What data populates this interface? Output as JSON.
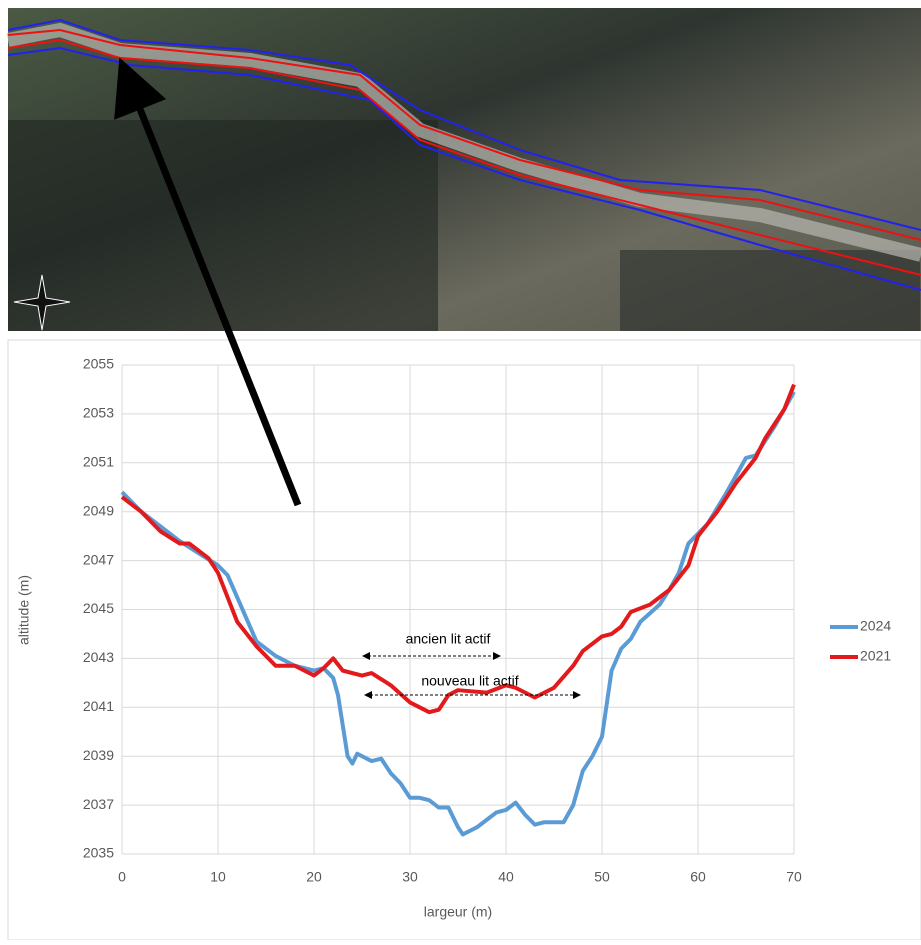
{
  "chart_data": {
    "type": "line",
    "xlabel": "largeur (m)",
    "ylabel": "altitude (m)",
    "xlim": [
      0,
      70
    ],
    "xticks": [
      0,
      10,
      20,
      30,
      40,
      50,
      60,
      70
    ],
    "ylim": [
      2035,
      2055
    ],
    "yticks": [
      2035,
      2037,
      2039,
      2041,
      2043,
      2045,
      2047,
      2049,
      2051,
      2053,
      2055
    ],
    "grid": true,
    "legend": "right",
    "annotations": [
      "ancien lit actif",
      "nouveau lit actif"
    ],
    "series": [
      {
        "name": "2024",
        "color": "#5b9bd5",
        "x": [
          0,
          2,
          4,
          6,
          8,
          10,
          11,
          12,
          13,
          14,
          16,
          18,
          20,
          21,
          22,
          22.5,
          23.5,
          24,
          24.5,
          26,
          27,
          28,
          29,
          30,
          31,
          32,
          33,
          34,
          35,
          35.5,
          37,
          38,
          39,
          40,
          41,
          42,
          43,
          44,
          45,
          46,
          47,
          48,
          49,
          50,
          51,
          52,
          53,
          54,
          56,
          57,
          58,
          59,
          61,
          63,
          65,
          66,
          68,
          70
        ],
        "values": [
          2049.8,
          2049.0,
          2048.4,
          2047.8,
          2047.3,
          2046.8,
          2046.4,
          2045.5,
          2044.6,
          2043.7,
          2043.1,
          2042.7,
          2042.5,
          2042.6,
          2042.2,
          2041.5,
          2039.0,
          2038.7,
          2039.1,
          2038.8,
          2038.9,
          2038.3,
          2037.9,
          2037.3,
          2037.3,
          2037.2,
          2036.9,
          2036.9,
          2036.1,
          2035.8,
          2036.1,
          2036.4,
          2036.7,
          2036.8,
          2037.1,
          2036.6,
          2036.2,
          2036.3,
          2036.3,
          2036.3,
          2037.0,
          2038.4,
          2039.0,
          2039.8,
          2042.5,
          2043.4,
          2043.8,
          2044.5,
          2045.2,
          2045.8,
          2046.5,
          2047.7,
          2048.5,
          2049.8,
          2051.2,
          2051.3,
          2052.5,
          2053.9
        ]
      },
      {
        "name": "2021",
        "color": "#e31a1c",
        "x": [
          0,
          2,
          4,
          6,
          7,
          9,
          10,
          12,
          14,
          16,
          18,
          20,
          21,
          22,
          23,
          25,
          26,
          28,
          30,
          32,
          33,
          34,
          35,
          38,
          40,
          41,
          43,
          45,
          47,
          48,
          50,
          51,
          52,
          53,
          55,
          57,
          59,
          60,
          62,
          64,
          66,
          67,
          69,
          70
        ],
        "values": [
          2049.6,
          2049.0,
          2048.2,
          2047.7,
          2047.7,
          2047.1,
          2046.5,
          2044.5,
          2043.5,
          2042.7,
          2042.7,
          2042.3,
          2042.6,
          2043.0,
          2042.5,
          2042.3,
          2042.4,
          2041.9,
          2041.2,
          2040.8,
          2040.9,
          2041.5,
          2041.7,
          2041.6,
          2041.9,
          2041.8,
          2041.4,
          2041.8,
          2042.7,
          2043.3,
          2043.9,
          2044.0,
          2044.3,
          2044.9,
          2045.2,
          2045.8,
          2046.8,
          2048.0,
          2049.0,
          2050.2,
          2051.2,
          2052.0,
          2053.2,
          2054.2
        ]
      }
    ]
  }
}
